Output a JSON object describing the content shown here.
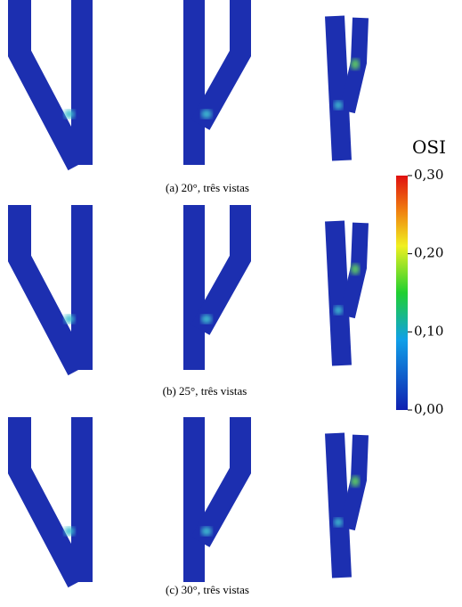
{
  "captions": [
    "(a) 20°, três vistas",
    "(b) 25°, três vistas",
    "(c) 30°, três vistas"
  ],
  "colorbar": {
    "title": "OSI",
    "ticks": [
      {
        "value": 0.3,
        "label": "0,30"
      },
      {
        "value": 0.2,
        "label": "0,20"
      },
      {
        "value": 0.1,
        "label": "0,10"
      },
      {
        "value": 0,
        "label": "0,00"
      }
    ]
  }
}
